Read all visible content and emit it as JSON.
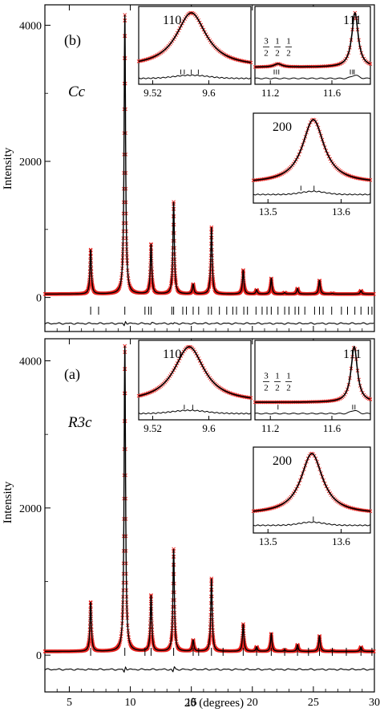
{
  "figure": {
    "x_axis_label": "2θ (degrees)",
    "y_axis_label": "Intensity"
  },
  "chart_data": [
    {
      "type": "line",
      "panel_label": "(b)",
      "space_group": "Cc",
      "xlim": [
        3,
        30
      ],
      "ylim": [
        -500,
        4300
      ],
      "xticks": [
        5,
        10,
        15,
        20,
        25,
        30
      ],
      "xtick_labels": [
        "",
        "",
        "",
        "",
        "",
        ""
      ],
      "yticks": [
        0,
        2000,
        4000
      ],
      "ytick_labels": [
        "0",
        "2000",
        "4000"
      ],
      "background": 50,
      "peaks": [
        {
          "x": 6.75,
          "y": 700
        },
        {
          "x": 9.55,
          "y": 4150
        },
        {
          "x": 11.7,
          "y": 780
        },
        {
          "x": 13.55,
          "y": 1400
        },
        {
          "x": 15.15,
          "y": 190
        },
        {
          "x": 16.65,
          "y": 1030
        },
        {
          "x": 19.25,
          "y": 400
        },
        {
          "x": 20.35,
          "y": 110
        },
        {
          "x": 21.55,
          "y": 280
        },
        {
          "x": 22.65,
          "y": 70
        },
        {
          "x": 23.7,
          "y": 130
        },
        {
          "x": 25.5,
          "y": 250
        },
        {
          "x": 26.55,
          "y": 60
        },
        {
          "x": 28.9,
          "y": 100
        }
      ],
      "reflection_ticks": [
        6.75,
        7.4,
        9.55,
        11.2,
        11.5,
        11.7,
        13.4,
        13.55,
        14.3,
        14.6,
        15.15,
        15.6,
        16.4,
        16.65,
        17.3,
        17.9,
        18.4,
        18.7,
        19.3,
        19.6,
        20.3,
        20.8,
        21.2,
        21.55,
        22.1,
        22.65,
        23.0,
        23.5,
        23.8,
        24.3,
        25.1,
        25.5,
        25.8,
        26.5,
        27.3,
        27.8,
        28.4,
        28.9,
        29.5,
        29.8
      ],
      "difference_spikes": [
        {
          "x": 9.55,
          "a": 55
        },
        {
          "x": 11.7,
          "a": 15
        },
        {
          "x": 13.55,
          "a": 15
        }
      ],
      "insets": [
        {
          "hkl": "110",
          "xlim": [
            9.5,
            9.66
          ],
          "xticks": [
            9.52,
            9.6
          ],
          "xtick_labels": [
            "9.52",
            "9.6"
          ],
          "peak_center": 9.575,
          "peak_width": 0.026,
          "reflection_ticks": [
            9.56,
            9.565,
            9.575,
            9.585
          ],
          "extra_label": null
        },
        {
          "hkl": "111",
          "xlim": [
            11.1,
            11.85
          ],
          "xticks": [
            11.2,
            11.6
          ],
          "xtick_labels": [
            "11.2",
            "11.6"
          ],
          "peak_center": 11.75,
          "peak_width": 0.025,
          "minor_peak_center": 11.25,
          "reflection_ticks": [
            11.225,
            11.24,
            11.255,
            11.72,
            11.735,
            11.745
          ],
          "extra_label": {
            "numerators": [
              "3",
              "1",
              "1"
            ],
            "denominators": [
              "2",
              "2",
              "2"
            ]
          }
        },
        {
          "hkl": "200",
          "xlim": [
            13.48,
            13.64
          ],
          "xticks": [
            13.5,
            13.6
          ],
          "xtick_labels": [
            "13.5",
            "13.6"
          ],
          "peak_center": 13.562,
          "peak_width": 0.018,
          "reflection_ticks": [
            13.545,
            13.563
          ],
          "extra_label": null
        }
      ]
    },
    {
      "type": "line",
      "panel_label": "(a)",
      "space_group": "R3c",
      "xlim": [
        3,
        30
      ],
      "ylim": [
        -500,
        4300
      ],
      "xticks": [
        5,
        10,
        15,
        20,
        25,
        30
      ],
      "xtick_labels": [
        "5",
        "10",
        "15",
        "20",
        "25",
        "30"
      ],
      "yticks": [
        0,
        2000,
        4000
      ],
      "ytick_labels": [
        "0",
        "2000",
        "4000"
      ],
      "background": 50,
      "peaks": [
        {
          "x": 6.75,
          "y": 720
        },
        {
          "x": 9.55,
          "y": 4200
        },
        {
          "x": 11.7,
          "y": 810
        },
        {
          "x": 13.55,
          "y": 1440
        },
        {
          "x": 15.15,
          "y": 200
        },
        {
          "x": 16.65,
          "y": 1040
        },
        {
          "x": 19.25,
          "y": 420
        },
        {
          "x": 20.35,
          "y": 110
        },
        {
          "x": 21.55,
          "y": 290
        },
        {
          "x": 22.65,
          "y": 70
        },
        {
          "x": 23.7,
          "y": 140
        },
        {
          "x": 25.5,
          "y": 260
        },
        {
          "x": 26.55,
          "y": 60
        },
        {
          "x": 28.9,
          "y": 110
        }
      ],
      "reflection_ticks": [
        6.75,
        9.55,
        11.2,
        11.7,
        13.55,
        15.15,
        15.6,
        16.65,
        17.6,
        19.25,
        20.35,
        21.55,
        22.65,
        23.7,
        24.6,
        25.5,
        26.55,
        27.7,
        28.9,
        29.8
      ],
      "difference_spikes": [
        {
          "x": 9.55,
          "a": 70
        },
        {
          "x": 13.55,
          "a": 60
        },
        {
          "x": 6.75,
          "a": 10
        }
      ],
      "insets": [
        {
          "hkl": "110",
          "xlim": [
            9.5,
            9.66
          ],
          "xticks": [
            9.52,
            9.6
          ],
          "xtick_labels": [
            "9.52",
            "9.6"
          ],
          "peak_center": 9.572,
          "peak_width": 0.026,
          "reflection_ticks": [
            9.565,
            9.577
          ],
          "extra_label": null
        },
        {
          "hkl": "111",
          "xlim": [
            11.1,
            11.85
          ],
          "xticks": [
            11.2,
            11.6
          ],
          "xtick_labels": [
            "11.2",
            "11.6"
          ],
          "peak_center": 11.745,
          "peak_width": 0.025,
          "minor_peak_center": null,
          "reflection_ticks": [
            11.25,
            11.735,
            11.75
          ],
          "extra_label": {
            "numerators": [
              "3",
              "1",
              "1"
            ],
            "denominators": [
              "2",
              "2",
              "2"
            ]
          }
        },
        {
          "hkl": "200",
          "xlim": [
            13.48,
            13.64
          ],
          "xticks": [
            13.5,
            13.6
          ],
          "xtick_labels": [
            "13.5",
            "13.6"
          ],
          "peak_center": 13.56,
          "peak_width": 0.018,
          "reflection_ticks": [
            13.562
          ],
          "extra_label": null
        }
      ]
    }
  ]
}
